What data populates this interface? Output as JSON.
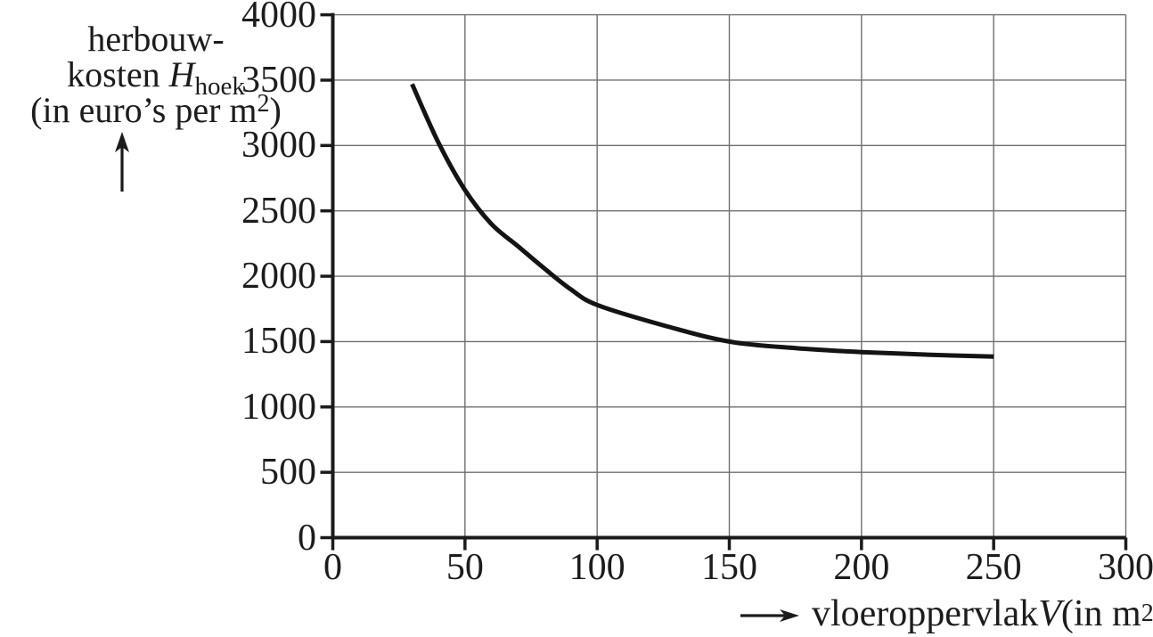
{
  "chart_data": {
    "type": "line",
    "title": "",
    "xlabel": "vloeroppervlak V (in m2)",
    "ylabel": "herbouwkosten H_hoek (in euro's per m2)",
    "xlim": [
      0,
      300
    ],
    "ylim": [
      0,
      4000
    ],
    "xticks": [
      0,
      50,
      100,
      150,
      200,
      250,
      300
    ],
    "yticks": [
      0,
      500,
      1000,
      1500,
      2000,
      2500,
      3000,
      3500,
      4000
    ],
    "grid": true,
    "legend": false,
    "series": [
      {
        "name": "H_hoek",
        "x": [
          30,
          40,
          50,
          60,
          70,
          80,
          90,
          100,
          125,
          150,
          175,
          200,
          225,
          250
        ],
        "y": [
          3470,
          3020,
          2660,
          2400,
          2230,
          2060,
          1900,
          1780,
          1625,
          1500,
          1450,
          1420,
          1400,
          1385
        ]
      }
    ],
    "line_color": "#141414",
    "grid_color": "#6f6f6f",
    "axis_color": "#1b1b1b"
  },
  "y_axis": {
    "label_line1": "herbouw-",
    "label_line2_prefix": "kosten ",
    "label_line2_var": "H",
    "label_line2_sub": "hoek",
    "label_line3_prefix": "(in euro’s per m",
    "label_line3_sup": "2",
    "label_line3_suffix": ")"
  },
  "x_axis": {
    "label_prefix": "vloeroppervlak ",
    "label_var": "V",
    "label_unit_prefix": " (in m",
    "label_sup": "2",
    "label_suffix": ")"
  }
}
